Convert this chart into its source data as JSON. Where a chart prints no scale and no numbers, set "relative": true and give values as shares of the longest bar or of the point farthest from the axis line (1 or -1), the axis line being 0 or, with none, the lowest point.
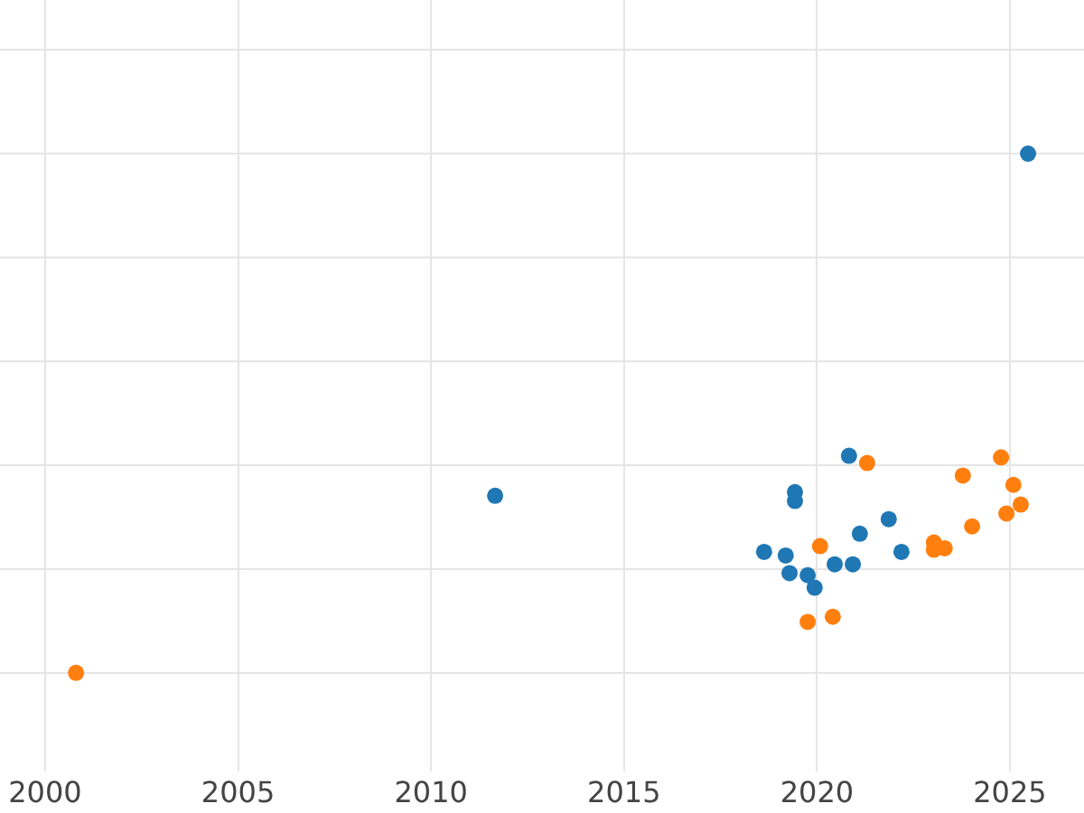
{
  "chart_data": {
    "type": "scatter",
    "relative": true,
    "marker": "circle",
    "grid": true,
    "xlim": [
      1998.83,
      2026.92
    ],
    "xticks": [
      2000,
      2005,
      2010,
      2015,
      2020,
      2025
    ],
    "series": [
      {
        "color": "#1f77b4",
        "x": [
          2011.66,
          2018.63,
          2019.19,
          2019.29,
          2019.43,
          2019.43,
          2019.76,
          2019.94,
          2020.46,
          2020.83,
          2020.93,
          2021.11,
          2021.86,
          2022.19,
          2025.47
        ],
        "values": [
          0.341,
          0.233,
          0.226,
          0.192,
          0.348,
          0.331,
          0.188,
          0.164,
          0.209,
          0.418,
          0.209,
          0.268,
          0.296,
          0.233,
          1
        ]
      },
      {
        "color": "#ff7f0e",
        "x": [
          2000.8,
          2019.76,
          2020.08,
          2020.41,
          2021.3,
          2023.03,
          2023.03,
          2023.31,
          2023.78,
          2024.02,
          2024.77,
          2024.91,
          2025.09,
          2025.28
        ],
        "values": [
          0,
          0.098,
          0.244,
          0.108,
          0.404,
          0.251,
          0.237,
          0.24,
          0.38,
          0.282,
          0.415,
          0.307,
          0.362,
          0.324
        ]
      }
    ]
  }
}
